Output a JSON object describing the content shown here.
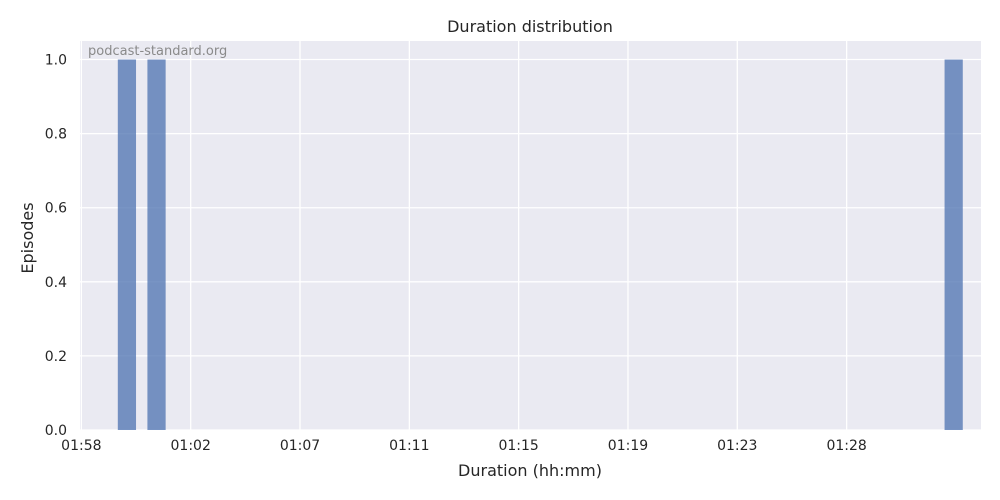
{
  "chart_data": {
    "type": "bar",
    "title": "Duration distribution",
    "xlabel": "Duration (hh:mm)",
    "ylabel": "Episodes",
    "watermark": "podcast-standard.org",
    "x_tick_labels": [
      "01:58",
      "01:02",
      "01:07",
      "01:11",
      "01:15",
      "01:19",
      "01:23",
      "01:28"
    ],
    "y_ticks": [
      0.0,
      0.2,
      0.4,
      0.6,
      0.8,
      1.0
    ],
    "y_tick_labels": [
      "0.0",
      "0.2",
      "0.4",
      "0.6",
      "0.8",
      "1.0"
    ],
    "ylim": [
      0,
      1.05
    ],
    "bars": [
      {
        "x": "00:59:40",
        "value": 1
      },
      {
        "x": "01:00:45",
        "value": 1
      },
      {
        "x": "01:29:55",
        "value": 1
      }
    ],
    "grid": true,
    "colors": {
      "background": "#eaeaf2",
      "bar": "#4c72b0",
      "grid": "#ffffff"
    }
  }
}
